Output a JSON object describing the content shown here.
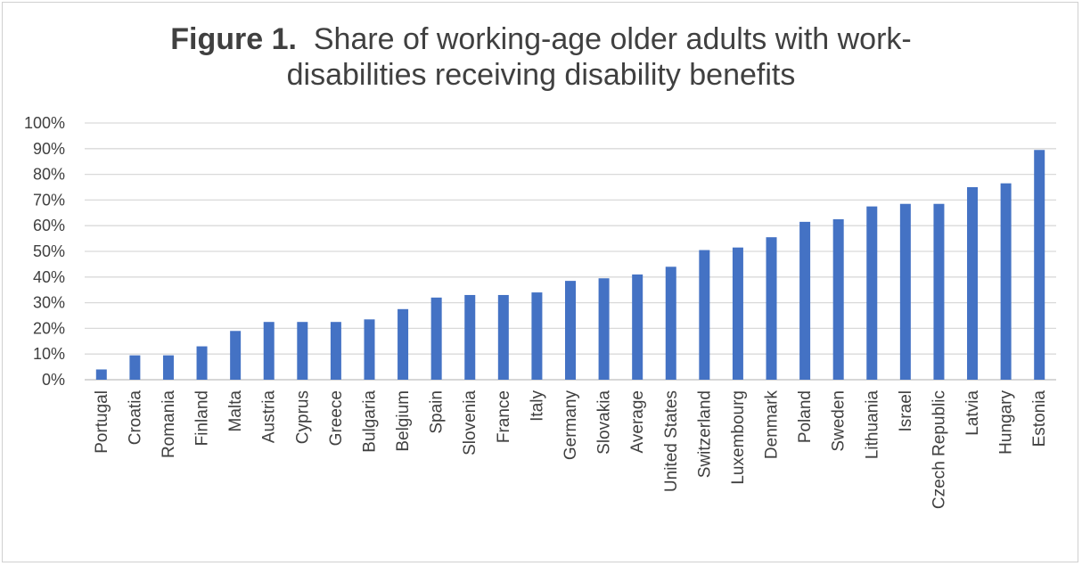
{
  "chart_data": {
    "type": "bar",
    "title_prefix": "Figure 1.",
    "title_line1": "Share of working-age older adults with work-",
    "title_line2": "disabilities receiving disability benefits",
    "xlabel": "",
    "ylabel": "",
    "ylim": [
      0,
      1
    ],
    "yticks": [
      "0%",
      "10%",
      "20%",
      "30%",
      "40%",
      "50%",
      "60%",
      "70%",
      "80%",
      "90%",
      "100%"
    ],
    "grid": true,
    "legend": "none",
    "bar_color": "#4472c4",
    "categories": [
      "Portugal",
      "Croatia",
      "Romania",
      "Finland",
      "Malta",
      "Austria",
      "Cyprus",
      "Greece",
      "Bulgaria",
      "Belgium",
      "Spain",
      "Slovenia",
      "France",
      "Italy",
      "Germany",
      "Slovakia",
      "Average",
      "United States",
      "Switzerland",
      "Luxembourg",
      "Denmark",
      "Poland",
      "Sweden",
      "Lithuania",
      "Israel",
      "Czech Republic",
      "Latvia",
      "Hungary",
      "Estonia"
    ],
    "values": [
      0.04,
      0.095,
      0.095,
      0.13,
      0.19,
      0.225,
      0.225,
      0.225,
      0.235,
      0.275,
      0.32,
      0.33,
      0.33,
      0.34,
      0.385,
      0.395,
      0.41,
      0.44,
      0.505,
      0.515,
      0.555,
      0.615,
      0.625,
      0.675,
      0.685,
      0.685,
      0.75,
      0.765,
      0.895
    ]
  }
}
